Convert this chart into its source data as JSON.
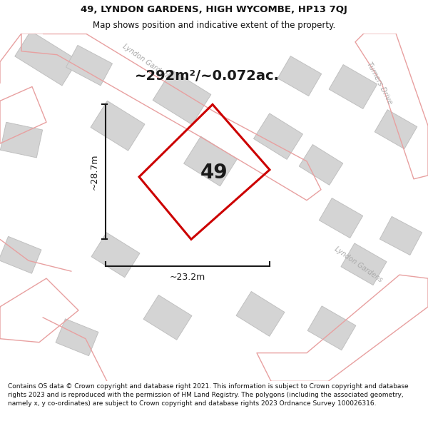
{
  "title": "49, LYNDON GARDENS, HIGH WYCOMBE, HP13 7QJ",
  "subtitle": "Map shows position and indicative extent of the property.",
  "footer": "Contains OS data © Crown copyright and database right 2021. This information is subject to Crown copyright and database rights 2023 and is reproduced with the permission of HM Land Registry. The polygons (including the associated geometry, namely x, y co-ordinates) are subject to Crown copyright and database rights 2023 Ordnance Survey 100026316.",
  "area_label": "~292m²/~0.072ac.",
  "width_label": "~23.2m",
  "height_label": "~28.7m",
  "plot_number": "49",
  "map_bg": "#ebebeb",
  "road_line_color": "#e8a0a0",
  "bld_fill": "#d4d4d4",
  "bld_stroke": "#c0c0c0",
  "plot_color": "#cc0000",
  "dim_color": "#1a1a1a",
  "street_label_color": "#aaaaaa",
  "title_color": "#111111",
  "footer_color": "#111111",
  "title_fontsize": 9.5,
  "subtitle_fontsize": 8.5,
  "footer_fontsize": 6.5,
  "area_fontsize": 14,
  "number_fontsize": 20,
  "dim_fontsize": 9
}
